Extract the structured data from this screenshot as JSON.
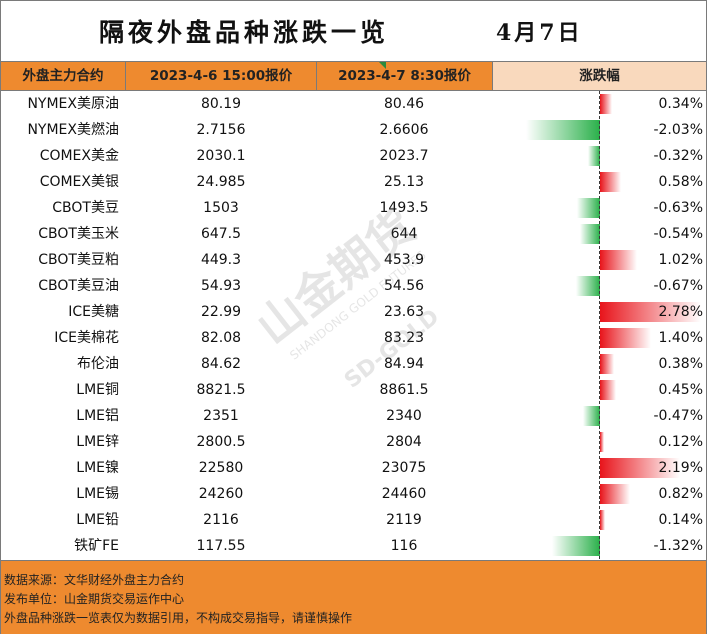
{
  "title": "隔夜外盘品种涨跌一览",
  "date": "4月7日",
  "header": {
    "col_name": "外盘主力合约",
    "col_prev": "2023-4-6 15:00报价",
    "col_curr": "2023-4-7 8:30报价",
    "col_change": "涨跌幅"
  },
  "colors": {
    "header_orange": "#ee8a2f",
    "pct_header": "#f9d9bd",
    "up_red": "#e8141b",
    "down_green": "#2ab04a"
  },
  "rows": [
    {
      "name": "NYMEX美原油",
      "prev": "80.19",
      "curr": "80.46",
      "change": "0.34%",
      "change_value": 0.34
    },
    {
      "name": "NYMEX美燃油",
      "prev": "2.7156",
      "curr": "2.6606",
      "change": "-2.03%",
      "change_value": -2.03
    },
    {
      "name": "COMEX美金",
      "prev": "2030.1",
      "curr": "2023.7",
      "change": "-0.32%",
      "change_value": -0.32
    },
    {
      "name": "COMEX美银",
      "prev": "24.985",
      "curr": "25.13",
      "change": "0.58%",
      "change_value": 0.58
    },
    {
      "name": "CBOT美豆",
      "prev": "1503",
      "curr": "1493.5",
      "change": "-0.63%",
      "change_value": -0.63
    },
    {
      "name": "CBOT美玉米",
      "prev": "647.5",
      "curr": "644",
      "change": "-0.54%",
      "change_value": -0.54
    },
    {
      "name": "CBOT美豆粕",
      "prev": "449.3",
      "curr": "453.9",
      "change": "1.02%",
      "change_value": 1.02
    },
    {
      "name": "CBOT美豆油",
      "prev": "54.93",
      "curr": "54.56",
      "change": "-0.67%",
      "change_value": -0.67
    },
    {
      "name": "ICE美糖",
      "prev": "22.99",
      "curr": "23.63",
      "change": "2.78%",
      "change_value": 2.78
    },
    {
      "name": "ICE美棉花",
      "prev": "82.08",
      "curr": "83.23",
      "change": "1.40%",
      "change_value": 1.4
    },
    {
      "name": "布伦油",
      "prev": "84.62",
      "curr": "84.94",
      "change": "0.38%",
      "change_value": 0.38
    },
    {
      "name": "LME铜",
      "prev": "8821.5",
      "curr": "8861.5",
      "change": "0.45%",
      "change_value": 0.45
    },
    {
      "name": "LME铝",
      "prev": "2351",
      "curr": "2340",
      "change": "-0.47%",
      "change_value": -0.47
    },
    {
      "name": "LME锌",
      "prev": "2800.5",
      "curr": "2804",
      "change": "0.12%",
      "change_value": 0.12
    },
    {
      "name": "LME镍",
      "prev": "22580",
      "curr": "23075",
      "change": "2.19%",
      "change_value": 2.19
    },
    {
      "name": "LME锡",
      "prev": "24260",
      "curr": "24460",
      "change": "0.82%",
      "change_value": 0.82
    },
    {
      "name": "LME铅",
      "prev": "2116",
      "curr": "2119",
      "change": "0.14%",
      "change_value": 0.14
    },
    {
      "name": "铁矿FE",
      "prev": "117.55",
      "curr": "116",
      "change": "-1.32%",
      "change_value": -1.32
    }
  ],
  "footer": {
    "source": "数据来源：文华财经外盘主力合约",
    "publisher": "发布单位：山金期货交易运作中心",
    "disclaimer": "外盘品种涨跌一览表仅为数据引用，不构成交易指导，请谨慎操作"
  },
  "watermark": {
    "cn": "山金期货",
    "en": "SHANDONG GOLD FUTURES",
    "logo_text": "SD-GOLD"
  }
}
